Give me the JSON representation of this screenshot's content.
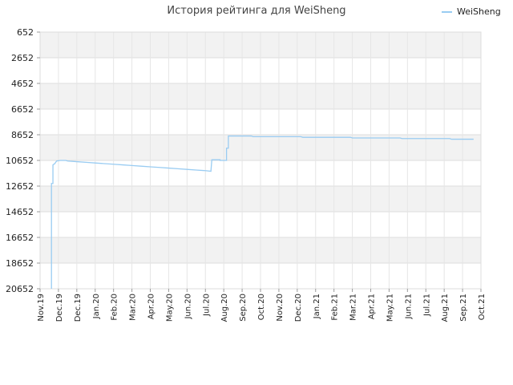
{
  "chart_data": {
    "type": "line",
    "title": "История рейтинга для WeiSheng",
    "xlabel": "",
    "ylabel": "",
    "y_inverted": true,
    "ylim": [
      652,
      20652
    ],
    "grid": true,
    "legend_position": "top-right",
    "yticks": [
      "652",
      "2652",
      "4652",
      "6652",
      "8652",
      "10652",
      "12652",
      "14652",
      "16652",
      "18652",
      "20652"
    ],
    "xticks": [
      "Nov.19",
      "Dec.19",
      "Dec.19",
      "Jan.20",
      "Feb.20",
      "Mar.20",
      "Apr.20",
      "May.20",
      "Jun.20",
      "Jul.20",
      "Aug.20",
      "Sep.20",
      "Oct.20",
      "Nov.20",
      "Dec.20",
      "Jan.21",
      "Feb.21",
      "Mar.21",
      "Apr.21",
      "May.21",
      "Jun.21",
      "Jul.21",
      "Aug.21",
      "Sep.21",
      "Oct.21"
    ],
    "series": [
      {
        "name": "WeiSheng",
        "color": "#99ccf2",
        "points": [
          [
            0.62,
            20652
          ],
          [
            0.62,
            12450
          ],
          [
            0.7,
            12450
          ],
          [
            0.7,
            11000
          ],
          [
            0.8,
            10900
          ],
          [
            0.9,
            10700
          ],
          [
            1.1,
            10650
          ],
          [
            1.4,
            10650
          ],
          [
            1.5,
            10700
          ],
          [
            2.0,
            10750
          ],
          [
            2.5,
            10800
          ],
          [
            3.0,
            10850
          ],
          [
            3.5,
            10900
          ],
          [
            4.0,
            10950
          ],
          [
            4.5,
            11000
          ],
          [
            5.0,
            11050
          ],
          [
            5.5,
            11100
          ],
          [
            6.0,
            11150
          ],
          [
            6.5,
            11200
          ],
          [
            7.0,
            11250
          ],
          [
            7.5,
            11300
          ],
          [
            8.0,
            11350
          ],
          [
            8.5,
            11400
          ],
          [
            9.0,
            11450
          ],
          [
            9.3,
            11500
          ],
          [
            9.35,
            10600
          ],
          [
            9.8,
            10600
          ],
          [
            9.8,
            10650
          ],
          [
            10.15,
            10650
          ],
          [
            10.15,
            9700
          ],
          [
            10.25,
            9700
          ],
          [
            10.25,
            8750
          ],
          [
            11.0,
            8750
          ],
          [
            11.5,
            8750
          ],
          [
            11.6,
            8800
          ],
          [
            13.0,
            8800
          ],
          [
            14.2,
            8800
          ],
          [
            14.3,
            8850
          ],
          [
            15.5,
            8850
          ],
          [
            16.9,
            8850
          ],
          [
            17.0,
            8900
          ],
          [
            19.0,
            8900
          ],
          [
            19.6,
            8900
          ],
          [
            19.7,
            8950
          ],
          [
            21.5,
            8950
          ],
          [
            22.3,
            8950
          ],
          [
            22.4,
            9000
          ],
          [
            23.6,
            9000
          ]
        ]
      }
    ]
  }
}
